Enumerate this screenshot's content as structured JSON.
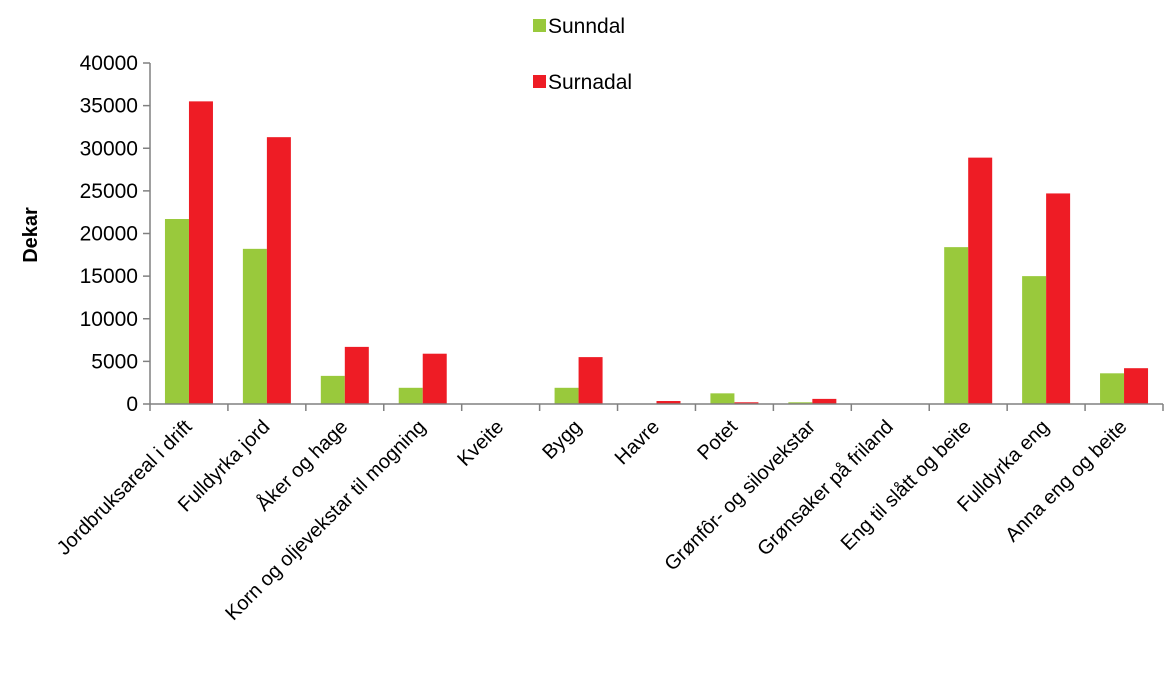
{
  "chart_data": {
    "type": "bar",
    "title": "",
    "xlabel": "",
    "ylabel": "Dekar",
    "ylim": [
      0,
      40000
    ],
    "yticks": [
      0,
      5000,
      10000,
      15000,
      20000,
      25000,
      30000,
      35000,
      40000
    ],
    "grid": false,
    "legend_position": "top",
    "categories": [
      "Jordbruksareal i drift",
      "Fulldyrka jord",
      "Åker og hage",
      "Korn og oljevekstar til mogning",
      "Kveite",
      "Bygg",
      "Havre",
      "Potet",
      "Grønfôr- og silovekstar",
      "Grønsaker på friland",
      "Eng til slått og beite",
      "Fulldyrka eng",
      "Anna eng og beite"
    ],
    "series": [
      {
        "name": "Sunndal",
        "color": "#99c93c",
        "values": [
          21700,
          18200,
          3300,
          1900,
          0,
          1900,
          0,
          1250,
          200,
          0,
          18400,
          15000,
          3600
        ]
      },
      {
        "name": "Surnadal",
        "color": "#ee1c25",
        "values": [
          35500,
          31300,
          6700,
          5900,
          0,
          5500,
          350,
          200,
          600,
          0,
          28900,
          24700,
          4200
        ]
      }
    ]
  }
}
